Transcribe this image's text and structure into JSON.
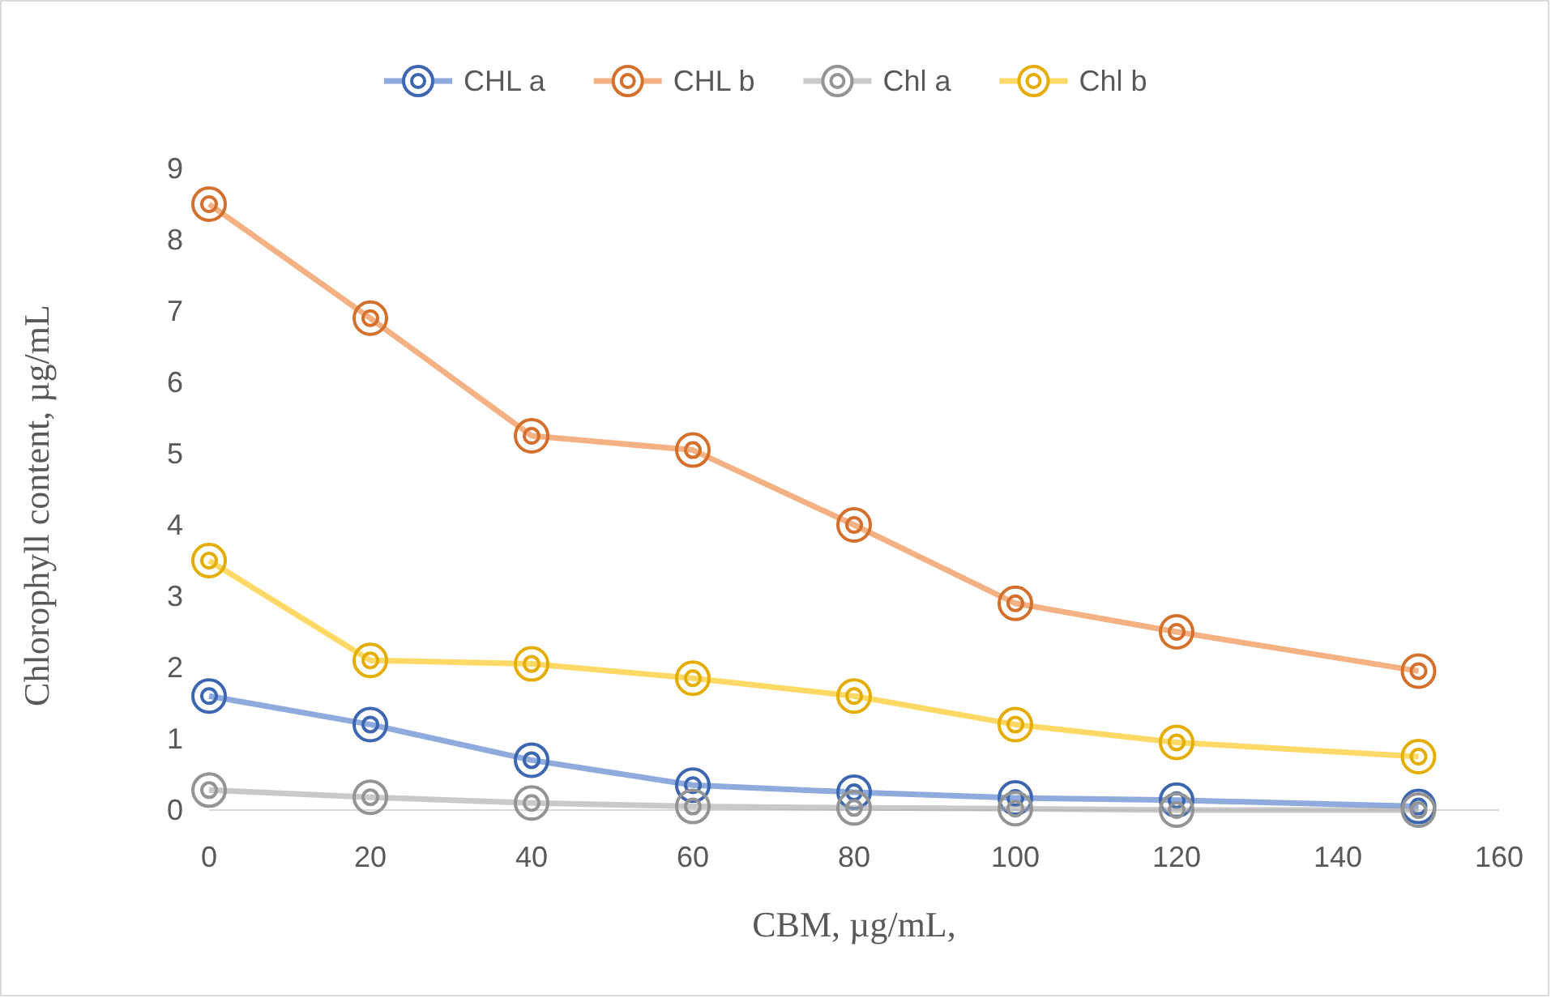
{
  "chart_data": {
    "type": "line",
    "xlabel": "CBM, µg/mL,",
    "ylabel": "Chlorophyll content, µg/mL",
    "x": [
      0,
      20,
      40,
      60,
      80,
      100,
      120,
      150
    ],
    "series": [
      {
        "name": "CHL a",
        "color": "#4472c4",
        "values": [
          1.6,
          1.2,
          0.7,
          0.35,
          0.25,
          0.17,
          0.14,
          0.05
        ]
      },
      {
        "name": "CHL b",
        "color": "#ed7d31",
        "values": [
          8.5,
          6.9,
          5.25,
          5.05,
          4.0,
          2.9,
          2.5,
          1.95
        ]
      },
      {
        "name": "Chl a",
        "color": "#a5a5a5",
        "values": [
          0.28,
          0.18,
          0.1,
          0.05,
          0.03,
          0.02,
          0.0,
          0.0
        ]
      },
      {
        "name": "Chl b",
        "color": "#ffc000",
        "values": [
          3.5,
          2.1,
          2.05,
          1.85,
          1.6,
          1.2,
          0.95,
          0.75
        ]
      }
    ],
    "xlim": [
      0,
      160
    ],
    "xticks": [
      0,
      20,
      40,
      60,
      80,
      100,
      120,
      140,
      160
    ],
    "ylim": [
      0,
      9
    ],
    "yticks": [
      0,
      1,
      2,
      3,
      4,
      5,
      6,
      7,
      8,
      9
    ],
    "grid": false,
    "legend": "top",
    "marker": "circle",
    "line_style": "solid"
  }
}
